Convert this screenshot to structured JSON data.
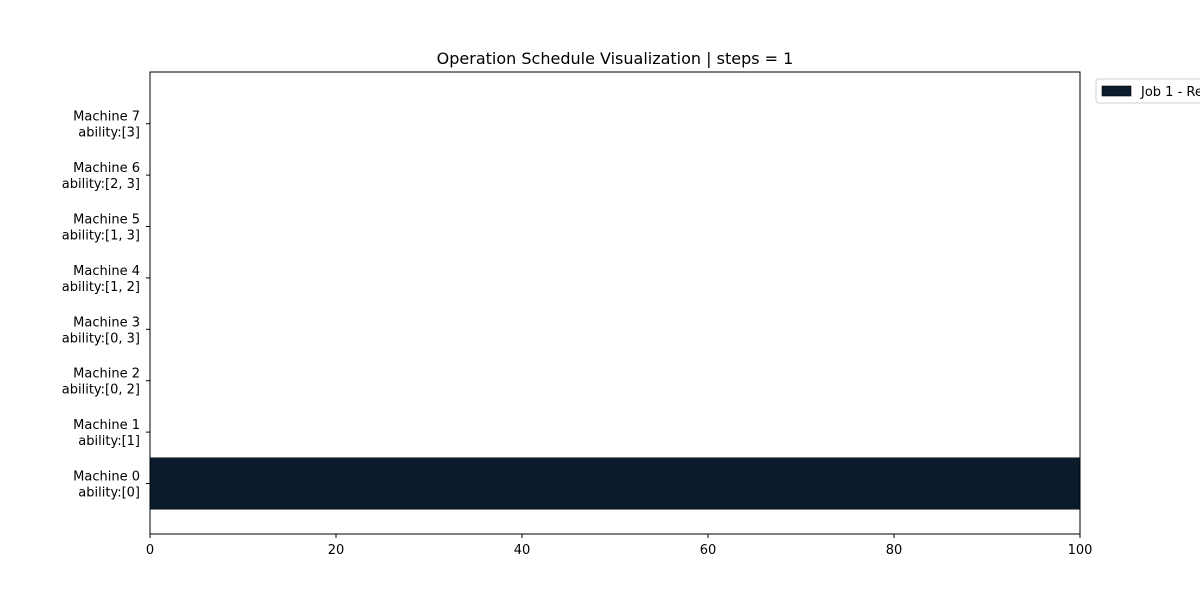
{
  "chart_data": {
    "type": "bar",
    "orientation": "horizontal",
    "title": "Operation Schedule Visualization | steps = 1",
    "xlim": [
      0,
      100
    ],
    "x_ticks": [
      0,
      20,
      40,
      60,
      80,
      100
    ],
    "categories": [
      {
        "name": "Machine 0",
        "ability": "ability:[0]"
      },
      {
        "name": "Machine 1",
        "ability": "ability:[1]"
      },
      {
        "name": "Machine 2",
        "ability": "ability:[0, 2]"
      },
      {
        "name": "Machine 3",
        "ability": "ability:[0, 3]"
      },
      {
        "name": "Machine 4",
        "ability": "ability:[1, 2]"
      },
      {
        "name": "Machine 5",
        "ability": "ability:[1, 3]"
      },
      {
        "name": "Machine 6",
        "ability": "ability:[2, 3]"
      },
      {
        "name": "Machine 7",
        "ability": "ability:[3]"
      }
    ],
    "bars": [
      {
        "machine": "Machine 0",
        "start": 0,
        "end": 100,
        "series": "Job 1 - Re",
        "color": "#0a1c2b"
      }
    ],
    "legend": {
      "placement": "outside-top-right",
      "entries": [
        {
          "label": "Job 1 - Re",
          "color": "#0a1c2b"
        }
      ]
    },
    "grid": false
  }
}
